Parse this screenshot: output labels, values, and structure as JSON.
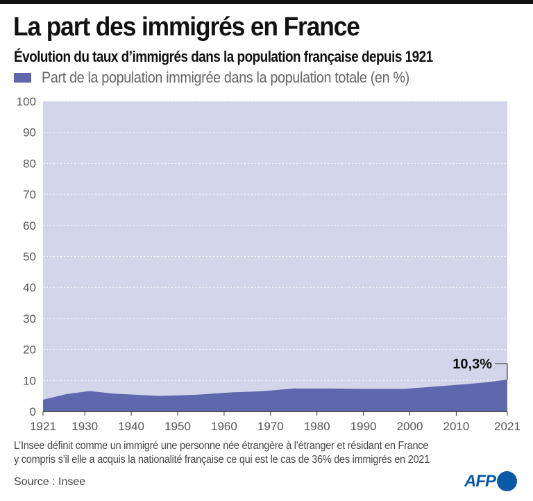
{
  "header": {
    "title": "La part des immigrés en France",
    "subtitle": "Évolution du taux d’immigrés dans la population française depuis 1921"
  },
  "legend": {
    "label": "Part de la population immigrée dans la population totale (en %)",
    "color": "#5f67ad"
  },
  "chart_data": {
    "type": "area",
    "title": "La part des immigrés en France",
    "subtitle": "Évolution du taux d’immigrés dans la population française depuis 1921",
    "xlabel": "",
    "ylabel": "",
    "x": [
      1921,
      1926,
      1931,
      1936,
      1946,
      1954,
      1962,
      1968,
      1975,
      1982,
      1990,
      1999,
      2006,
      2011,
      2016,
      2021
    ],
    "series": [
      {
        "name": "Part de la population immigrée dans la population totale (en %)",
        "values": [
          3.8,
          5.6,
          6.6,
          5.8,
          5.0,
          5.4,
          6.2,
          6.5,
          7.4,
          7.4,
          7.3,
          7.3,
          8.1,
          8.7,
          9.3,
          10.3
        ],
        "color": "#5f67ad"
      }
    ],
    "xlim": [
      1921,
      2021
    ],
    "ylim": [
      0,
      100
    ],
    "xticks": [
      "1921",
      "1930",
      "1940",
      "1950",
      "1960",
      "1970",
      "1980",
      "1990",
      "2000",
      "2010",
      "2021"
    ],
    "yticks": [
      "0",
      "10",
      "20",
      "30",
      "40",
      "50",
      "60",
      "70",
      "80",
      "90",
      "100"
    ],
    "grid": true,
    "background_color": "#d3d6ea",
    "annotations": [
      {
        "x": 2021,
        "y": 10.3,
        "text": "10,3%"
      }
    ],
    "legend_position": "top-left"
  },
  "footer": {
    "note_line1": "L’Insee définit comme un immigré une personne née étrangère à l’étranger et résidant en France",
    "note_line2": "y compris s’il elle a acquis la nationalité française ce qui est le cas de 36% des immigrés en 2021",
    "source": "Source : Insee",
    "logo_text": "AFP",
    "logo_color": "#0b5aa8"
  }
}
